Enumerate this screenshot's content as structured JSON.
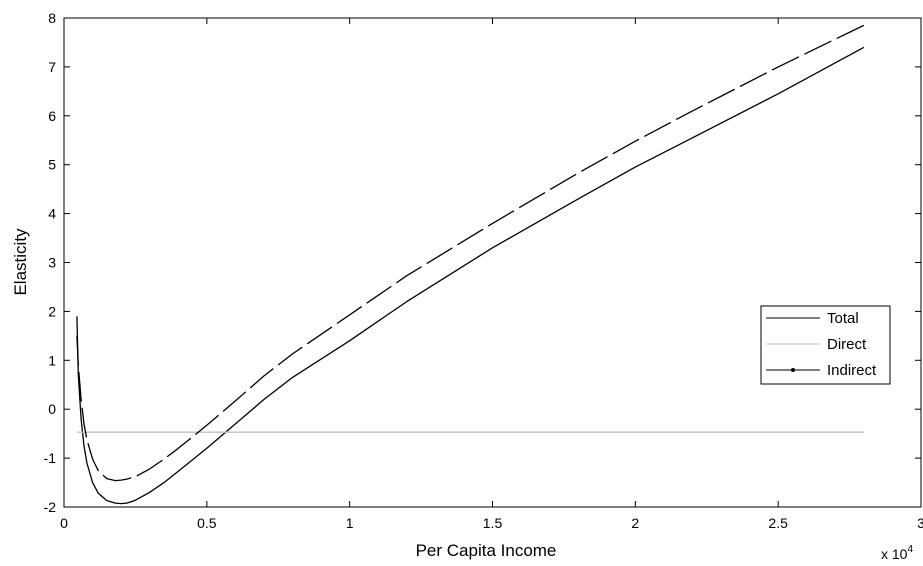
{
  "chart_data": {
    "type": "line",
    "xlabel": "Per Capita Income",
    "ylabel": "Elasticity",
    "x_multiplier_label": "x 10",
    "x_multiplier_exponent": "4",
    "xlim": [
      0,
      3
    ],
    "ylim": [
      -2,
      8
    ],
    "x_ticks": [
      0,
      0.5,
      1,
      1.5,
      2,
      2.5,
      3
    ],
    "x_tick_labels": [
      "0",
      "0.5",
      "1",
      "1.5",
      "2",
      "2.5",
      "3"
    ],
    "y_ticks": [
      -2,
      -1,
      0,
      1,
      2,
      3,
      4,
      5,
      6,
      7,
      8
    ],
    "y_tick_labels": [
      "-2",
      "-1",
      "0",
      "1",
      "2",
      "3",
      "4",
      "5",
      "6",
      "7",
      "8"
    ],
    "grid": false,
    "legend_position": "right",
    "series": [
      {
        "name": "Total",
        "color": "#000000",
        "style": "solid",
        "x": [
          0.045,
          0.05,
          0.06,
          0.07,
          0.08,
          0.1,
          0.12,
          0.15,
          0.18,
          0.2,
          0.22,
          0.25,
          0.3,
          0.35,
          0.4,
          0.5,
          0.6,
          0.7,
          0.8,
          1.0,
          1.2,
          1.5,
          1.8,
          2.0,
          2.2,
          2.5,
          2.8
        ],
        "y": [
          1.9,
          0.7,
          -0.2,
          -0.75,
          -1.1,
          -1.5,
          -1.72,
          -1.87,
          -1.92,
          -1.93,
          -1.92,
          -1.86,
          -1.7,
          -1.5,
          -1.27,
          -0.8,
          -0.3,
          0.2,
          0.65,
          1.4,
          2.2,
          3.3,
          4.3,
          4.95,
          5.55,
          6.45,
          7.4
        ]
      },
      {
        "name": "Direct",
        "color": "#c0c0c0",
        "style": "solid",
        "x": [
          0.045,
          2.8
        ],
        "y": [
          -0.47,
          -0.47
        ]
      },
      {
        "name": "Indirect",
        "color": "#000000",
        "style": "dashed",
        "x": [
          0.045,
          0.05,
          0.06,
          0.07,
          0.08,
          0.1,
          0.12,
          0.15,
          0.18,
          0.2,
          0.22,
          0.25,
          0.3,
          0.35,
          0.4,
          0.5,
          0.6,
          0.7,
          0.8,
          1.0,
          1.2,
          1.5,
          1.8,
          2.0,
          2.2,
          2.5,
          2.8
        ],
        "y": [
          1.5,
          0.9,
          0.2,
          -0.3,
          -0.62,
          -1.02,
          -1.26,
          -1.42,
          -1.46,
          -1.45,
          -1.43,
          -1.38,
          -1.22,
          -1.02,
          -0.8,
          -0.33,
          0.17,
          0.68,
          1.13,
          1.93,
          2.73,
          3.8,
          4.83,
          5.48,
          6.1,
          7.0,
          7.85
        ]
      }
    ]
  }
}
